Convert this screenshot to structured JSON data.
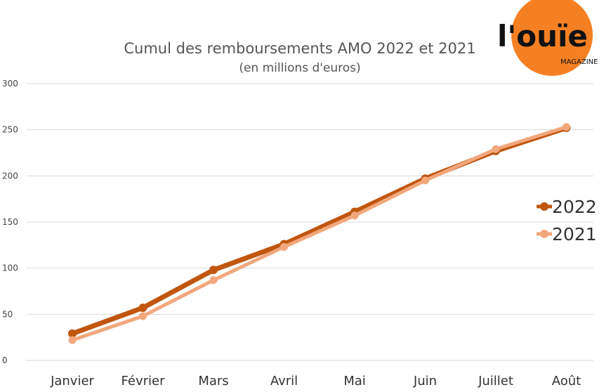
{
  "chart_data": {
    "type": "line",
    "title": "Cumul des remboursements AMO 2022 et 2021",
    "subtitle": "(en millions d'euros)",
    "categories": [
      "Janvier",
      "Février",
      "Mars",
      "Avril",
      "Mai",
      "Juin",
      "Juillet",
      "Août"
    ],
    "y_ticks": [
      "0",
      "50",
      "100",
      "150",
      "200",
      "250",
      "300"
    ],
    "ylim": [
      0,
      300
    ],
    "grid": true,
    "legend_position": "right",
    "series": [
      {
        "name": "2022",
        "color": "#c0560f",
        "values": [
          29,
          57,
          98,
          126,
          161,
          197,
          227,
          252
        ]
      },
      {
        "name": "2021",
        "color": "#f2a77c",
        "values": [
          22,
          48,
          87,
          123,
          157,
          195,
          229,
          253
        ]
      }
    ]
  },
  "logo": {
    "brand": "l'ouïe",
    "sub": "MAGAZINE",
    "color": "#f58023"
  }
}
